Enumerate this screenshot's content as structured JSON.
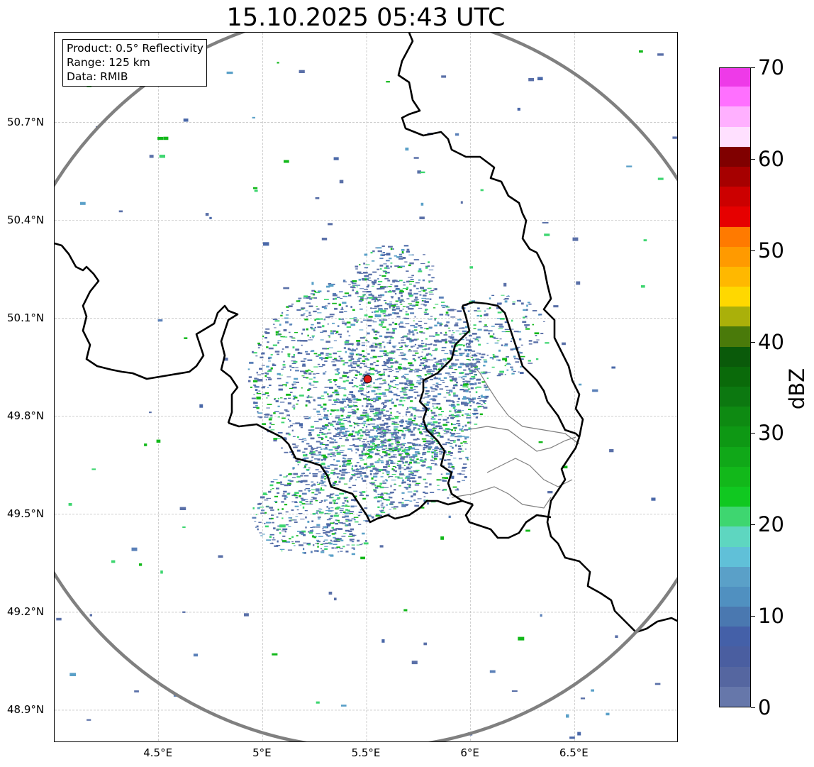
{
  "title": "15.10.2025 05:43 UTC",
  "info_box": {
    "product": "Product: 0.5° Reflectivity",
    "range": "Range: 125 km",
    "source": "Data: RMIB"
  },
  "map": {
    "lon_range": [
      4.0,
      7.0
    ],
    "lat_range": [
      48.8,
      50.975
    ],
    "lat_ticks": [
      {
        "value": 48.9,
        "label": "48.9°N"
      },
      {
        "value": 49.2,
        "label": "49.2°N"
      },
      {
        "value": 49.5,
        "label": "49.5°N"
      },
      {
        "value": 49.8,
        "label": "49.8°N"
      },
      {
        "value": 50.1,
        "label": "50.1°N"
      },
      {
        "value": 50.4,
        "label": "50.4°N"
      },
      {
        "value": 50.7,
        "label": "50.7°N"
      }
    ],
    "lon_ticks": [
      {
        "value": 4.5,
        "label": "4.5°E"
      },
      {
        "value": 5.0,
        "label": "5°E"
      },
      {
        "value": 5.5,
        "label": "5.5°E"
      },
      {
        "value": 6.0,
        "label": "6°E"
      },
      {
        "value": 6.5,
        "label": "6.5°E"
      }
    ],
    "radar_site": {
      "lon": 5.505,
      "lat": 49.914
    },
    "range_ring_km": 125,
    "colors": {
      "range_ring": "#808080",
      "border": "#000000",
      "admin_border": "#808080",
      "radar_marker": "#e11c1c",
      "grid": "#b0b0b0"
    }
  },
  "colorbar": {
    "label": "dBZ",
    "min": 0,
    "max": 70,
    "ticks": [
      {
        "value": 0,
        "label": "0"
      },
      {
        "value": 10,
        "label": "10"
      },
      {
        "value": 20,
        "label": "20"
      },
      {
        "value": 30,
        "label": "30"
      },
      {
        "value": 40,
        "label": "40"
      },
      {
        "value": 50,
        "label": "50"
      },
      {
        "value": 60,
        "label": "60"
      },
      {
        "value": 70,
        "label": "70"
      }
    ],
    "colors": [
      "#6677aa",
      "#5566a0",
      "#4a5ea0",
      "#4460a8",
      "#4a78b0",
      "#5090c0",
      "#5aa0c8",
      "#60c0d8",
      "#5ed6c0",
      "#3ed670",
      "#10c820",
      "#12b81a",
      "#10a818",
      "#0e9814",
      "#0e8a12",
      "#0c7810",
      "#0a6a0a",
      "#0a5a0a",
      "#4a7a0a",
      "#aab00a",
      "#ffd800",
      "#ffb800",
      "#ff9a00",
      "#ff7a00",
      "#e60000",
      "#cc0000",
      "#a60000",
      "#800000",
      "#ffe0ff",
      "#ffb0ff",
      "#ff70ff",
      "#ee3ae8"
    ]
  }
}
